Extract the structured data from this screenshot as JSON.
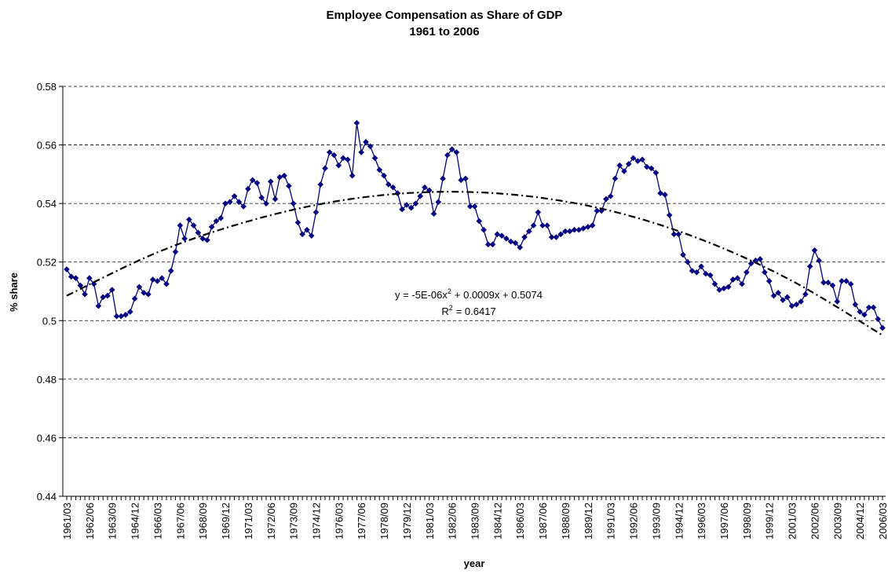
{
  "chart_data": {
    "type": "line",
    "title": "Employee Compensation as Share of GDP",
    "subtitle": "1961 to 2006",
    "x_label": "year",
    "y_label": "% share",
    "categories": [
      "1961/03",
      null,
      null,
      null,
      null,
      "1962/06",
      null,
      null,
      null,
      null,
      "1963/09",
      null,
      null,
      null,
      null,
      "1964/12",
      null,
      null,
      null,
      null,
      "1966/03",
      null,
      null,
      null,
      null,
      "1967/06",
      null,
      null,
      null,
      null,
      "1968/09",
      null,
      null,
      null,
      null,
      "1969/12",
      null,
      null,
      null,
      null,
      "1971/03",
      null,
      null,
      null,
      null,
      "1972/06",
      null,
      null,
      null,
      null,
      "1973/09",
      null,
      null,
      null,
      null,
      "1974/12",
      null,
      null,
      null,
      null,
      "1976/03",
      null,
      null,
      null,
      null,
      "1977/06",
      null,
      null,
      null,
      null,
      "1978/09",
      null,
      null,
      null,
      null,
      "1979/12",
      null,
      null,
      null,
      null,
      "1981/03",
      null,
      null,
      null,
      null,
      "1982/06",
      null,
      null,
      null,
      null,
      "1983/09",
      null,
      null,
      null,
      null,
      "1984/12",
      null,
      null,
      null,
      null,
      "1986/03",
      null,
      null,
      null,
      null,
      "1987/06",
      null,
      null,
      null,
      null,
      "1988/09",
      null,
      null,
      null,
      null,
      "1989/12",
      null,
      null,
      null,
      null,
      "1991/03",
      null,
      null,
      null,
      null,
      "1992/06",
      null,
      null,
      null,
      null,
      "1993/09",
      null,
      null,
      null,
      null,
      "1994/12",
      null,
      null,
      null,
      null,
      "1996/03",
      null,
      null,
      null,
      null,
      "1997/06",
      null,
      null,
      null,
      null,
      "1998/09",
      null,
      null,
      null,
      null,
      "1999/12",
      null,
      null,
      null,
      null,
      "2001/03",
      null,
      null,
      null,
      null,
      "2002/06",
      null,
      null,
      null,
      null,
      "2003/09",
      null,
      null,
      null,
      null,
      "2004/12",
      null,
      null,
      null,
      null,
      "2006/03"
    ],
    "series": [
      {
        "color": "#000080",
        "values": [
          0.5175,
          0.515,
          0.5145,
          0.512,
          0.509,
          0.5145,
          0.5125,
          0.505,
          0.508,
          0.5085,
          0.5105,
          0.5015,
          0.5015,
          0.502,
          0.503,
          0.5075,
          0.5115,
          0.5095,
          0.509,
          0.514,
          0.5135,
          0.5145,
          0.5125,
          0.517,
          0.5235,
          0.5325,
          0.528,
          0.5345,
          0.5325,
          0.53,
          0.528,
          0.5275,
          0.532,
          0.534,
          0.535,
          0.54,
          0.5405,
          0.5425,
          0.5405,
          0.539,
          0.545,
          0.548,
          0.547,
          0.542,
          0.54,
          0.5475,
          0.5415,
          0.549,
          0.5495,
          0.546,
          0.54,
          0.5335,
          0.5295,
          0.531,
          0.529,
          0.537,
          0.5465,
          0.552,
          0.5575,
          0.5565,
          0.553,
          0.5555,
          0.555,
          0.5495,
          0.5675,
          0.5575,
          0.561,
          0.5595,
          0.5555,
          0.5515,
          0.5495,
          0.5465,
          0.5455,
          0.5435,
          0.538,
          0.5395,
          0.5385,
          0.54,
          0.5425,
          0.5455,
          0.5445,
          0.5365,
          0.5405,
          0.5485,
          0.5565,
          0.5585,
          0.5575,
          0.548,
          0.5485,
          0.539,
          0.539,
          0.534,
          0.531,
          0.526,
          0.526,
          0.5295,
          0.529,
          0.528,
          0.527,
          0.5265,
          0.525,
          0.5285,
          0.5305,
          0.5325,
          0.537,
          0.5325,
          0.5325,
          0.5285,
          0.5285,
          0.5295,
          0.5305,
          0.5305,
          0.531,
          0.531,
          0.5315,
          0.532,
          0.5325,
          0.5375,
          0.5375,
          0.5415,
          0.5425,
          0.5485,
          0.553,
          0.551,
          0.5535,
          0.5555,
          0.5545,
          0.555,
          0.5525,
          0.552,
          0.5505,
          0.5435,
          0.543,
          0.536,
          0.5295,
          0.5295,
          0.5225,
          0.52,
          0.517,
          0.5165,
          0.5185,
          0.516,
          0.5155,
          0.5125,
          0.5105,
          0.511,
          0.5115,
          0.514,
          0.5145,
          0.5125,
          0.5165,
          0.5195,
          0.5205,
          0.521,
          0.5165,
          0.5135,
          0.5085,
          0.5095,
          0.507,
          0.508,
          0.505,
          0.5055,
          0.5065,
          0.509,
          0.5185,
          0.524,
          0.5205,
          0.513,
          0.513,
          0.512,
          0.5065,
          0.5135,
          0.5135,
          0.5125,
          0.5055,
          0.503,
          0.502,
          0.5045,
          0.5045,
          0.5005,
          0.4975
        ]
      }
    ],
    "trendline": {
      "color": "#000000",
      "x": [
        0,
        20,
        40,
        60,
        80,
        100,
        120,
        140,
        160,
        180
      ],
      "values": [
        0.5085,
        0.5233,
        0.5339,
        0.5409,
        0.5439,
        0.5428,
        0.5375,
        0.5277,
        0.5136,
        0.495
      ]
    },
    "equation": [
      "y = -5E-06x",
      "2",
      "+ 0.0009x + 0.5074"
    ],
    "r_squared": [
      "R",
      "2",
      "= 0.6417"
    ],
    "ylim": [
      0.44,
      0.58
    ],
    "yticks": [
      0.44,
      0.46,
      0.48,
      0.5,
      0.52,
      0.54,
      0.56,
      0.58
    ],
    "grid": true
  }
}
